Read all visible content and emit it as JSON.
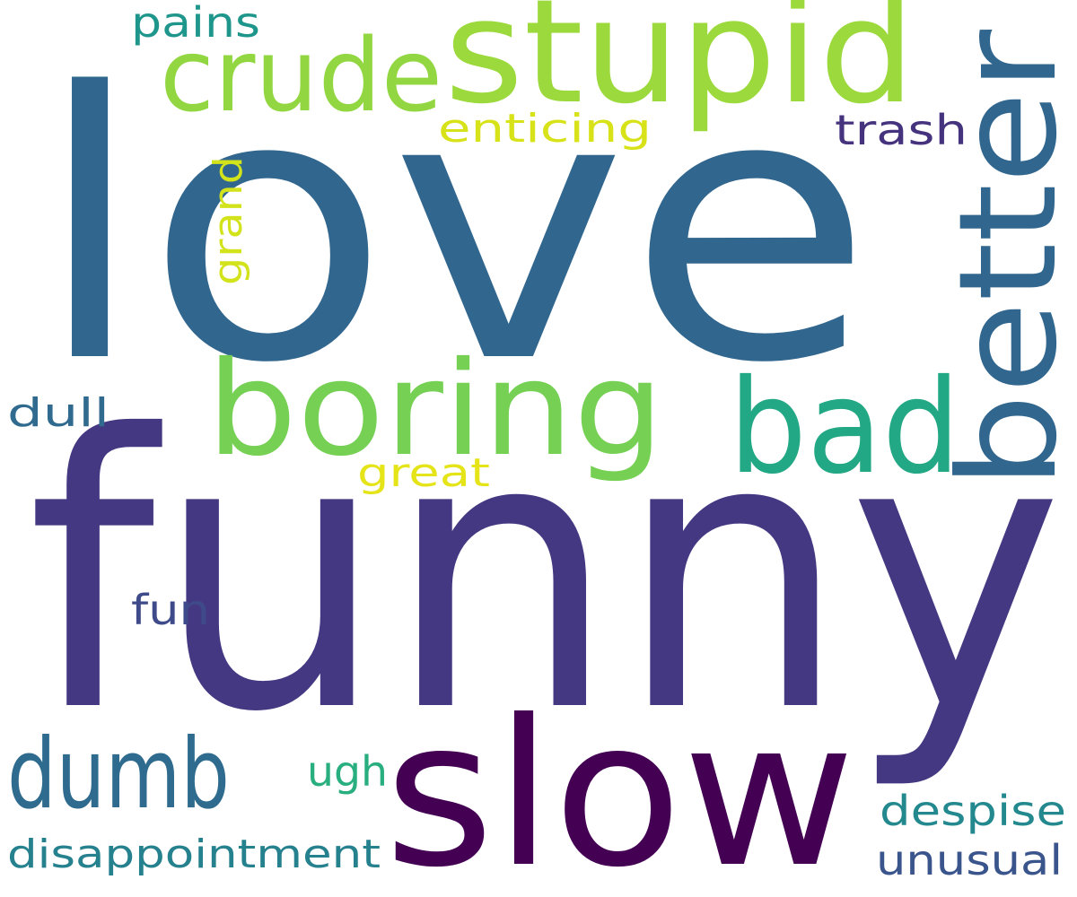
{
  "words": [
    {
      "text": "love",
      "color": "#31668e"
    },
    {
      "text": "funny",
      "color": "#453882"
    },
    {
      "text": "stupid",
      "color": "#9bd93c"
    },
    {
      "text": "crude",
      "color": "#92d741"
    },
    {
      "text": "better",
      "color": "#31668e"
    },
    {
      "text": "boring",
      "color": "#75d054"
    },
    {
      "text": "bad",
      "color": "#22a884"
    },
    {
      "text": "slow",
      "color": "#440154"
    },
    {
      "text": "dumb",
      "color": "#2f6b8e"
    },
    {
      "text": "pains",
      "color": "#1f968b"
    },
    {
      "text": "enticing",
      "color": "#d8e219"
    },
    {
      "text": "trash",
      "color": "#46337e"
    },
    {
      "text": "grand",
      "color": "#d2e21b"
    },
    {
      "text": "dull",
      "color": "#306a8e"
    },
    {
      "text": "great",
      "color": "#e5e419"
    },
    {
      "text": "fun",
      "color": "#3e4a89"
    },
    {
      "text": "ugh",
      "color": "#29af7f"
    },
    {
      "text": "despise",
      "color": "#23898e"
    },
    {
      "text": "disappointment",
      "color": "#26818e"
    },
    {
      "text": "unusual",
      "color": "#3a548c"
    }
  ]
}
